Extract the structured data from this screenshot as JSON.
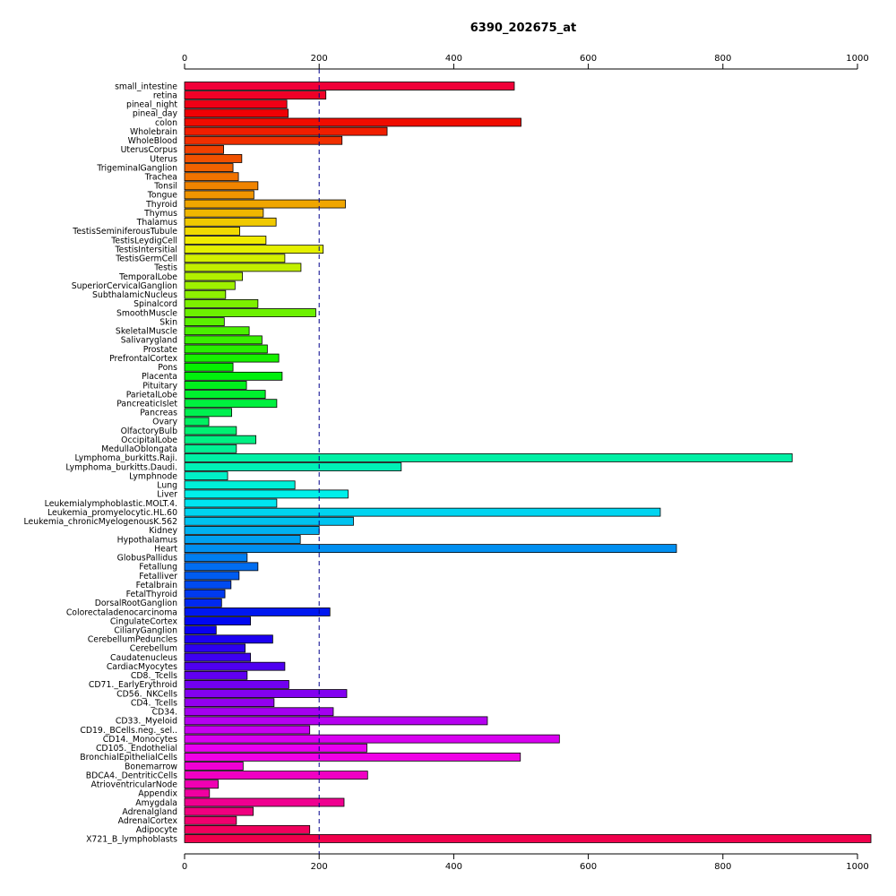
{
  "chart_data": {
    "type": "bar",
    "orientation": "horizontal",
    "title": "6390_202675_at",
    "xlabel": "",
    "ylabel": "",
    "xlim": [
      0,
      1000
    ],
    "xticks": [
      0,
      200,
      400,
      600,
      800,
      1000
    ],
    "xtick_labels": [
      "0",
      "200",
      "400",
      "600",
      "800",
      "1000"
    ],
    "axis_position": "top and bottom",
    "grid": false,
    "legend": "none",
    "reference_line": {
      "value": 200,
      "style": "dashed",
      "color": "#00008B"
    },
    "bar_colors": "rainbow gradient (red at top through yellow, green, cyan, blue, magenta, back to red at bottom)",
    "categories": [
      "small_intestine",
      "retina",
      "pineal_night",
      "pineal_day",
      "colon",
      "Wholebrain",
      "WholeBlood",
      "UterusCorpus",
      "Uterus",
      "TrigeminalGanglion",
      "Trachea",
      "Tonsil",
      "Tongue",
      "Thyroid",
      "Thymus",
      "Thalamus",
      "TestisSeminiferousTubule",
      "TestisLeydigCell",
      "TestisIntersitial",
      "TestisGermCell",
      "Testis",
      "TemporalLobe",
      "SuperiorCervicalGanglion",
      "SubthalamicNucleus",
      "Spinalcord",
      "SmoothMuscle",
      "Skin",
      "SkeletalMuscle",
      "Salivarygland",
      "Prostate",
      "PrefrontalCortex",
      "Pons",
      "Placenta",
      "Pituitary",
      "ParietalLobe",
      "PancreaticIslet",
      "Pancreas",
      "Ovary",
      "OlfactoryBulb",
      "OccipitalLobe",
      "MedullaOblongata",
      "Lymphoma_burkitts.Raji.",
      "Lymphoma_burkitts.Daudi.",
      "Lymphnode",
      "Lung",
      "Liver",
      "Leukemialymphoblastic.MOLT.4.",
      "Leukemia_promyelocytic.HL.60",
      "Leukemia_chronicMyelogenousK.562",
      "Kidney",
      "Hypothalamus",
      "Heart",
      "GlobusPallidus",
      "Fetallung",
      "Fetalliver",
      "Fetalbrain",
      "FetalThyroid",
      "DorsalRootGanglion",
      "Colorectaladenocarcinoma",
      "CingulateCortex",
      "CiliaryGanglion",
      "CerebellumPeduncles",
      "Cerebellum",
      "Caudatenucleus",
      "CardiacMyocytes",
      "CD8._Tcells",
      "CD71._EarlyErythroid",
      "CD56._NKCells",
      "CD4._Tcells",
      "CD34.",
      "CD33._Myeloid",
      "CD19._BCells.neg._sel..",
      "CD14._Monocytes",
      "CD105._Endothelial",
      "BronchialEpithelialCells",
      "Bonemarrow",
      "BDCA4._DentriticCells",
      "AtrioventricularNode",
      "Appendix",
      "Amygdala",
      "Adrenalgland",
      "AdrenalCortex",
      "Adipocyte",
      "X721_B_lymphoblasts"
    ],
    "values": [
      490,
      210,
      152,
      154,
      500,
      301,
      234,
      58,
      85,
      72,
      80,
      109,
      103,
      239,
      117,
      136,
      82,
      121,
      206,
      149,
      173,
      86,
      75,
      61,
      109,
      195,
      59,
      96,
      115,
      123,
      140,
      72,
      145,
      92,
      120,
      137,
      70,
      36,
      77,
      106,
      77,
      903,
      322,
      64,
      164,
      243,
      137,
      707,
      251,
      200,
      172,
      731,
      93,
      109,
      81,
      69,
      60,
      55,
      216,
      98,
      47,
      131,
      90,
      98,
      149,
      93,
      155,
      241,
      133,
      221,
      450,
      186,
      557,
      271,
      499,
      87,
      272,
      50,
      37,
      237,
      102,
      77,
      186,
      1020
    ]
  }
}
